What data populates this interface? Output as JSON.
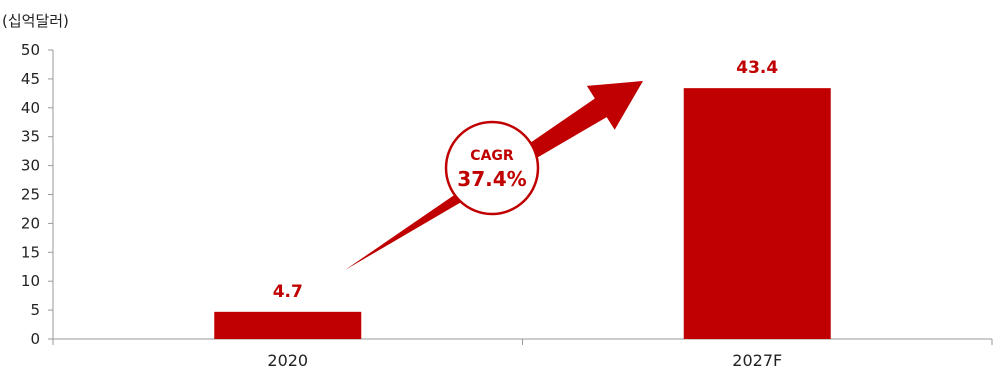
{
  "chart_data": {
    "type": "bar",
    "unit_label": "(십억달러)",
    "categories": [
      "2020",
      "2027F"
    ],
    "values": [
      4.7,
      43.4
    ],
    "data_labels": [
      "4.7",
      "43.4"
    ],
    "ylim": [
      0,
      50
    ],
    "yticks": [
      0,
      5,
      10,
      15,
      20,
      25,
      30,
      35,
      40,
      45,
      50
    ],
    "grid": false,
    "legend": "none",
    "annotation": {
      "shape": "upward-arrow",
      "title": "CAGR",
      "value": "37.4%"
    }
  },
  "colors": {
    "bar": "#c00000",
    "label": "#c00000",
    "axis": "#999999",
    "text": "#222222"
  }
}
